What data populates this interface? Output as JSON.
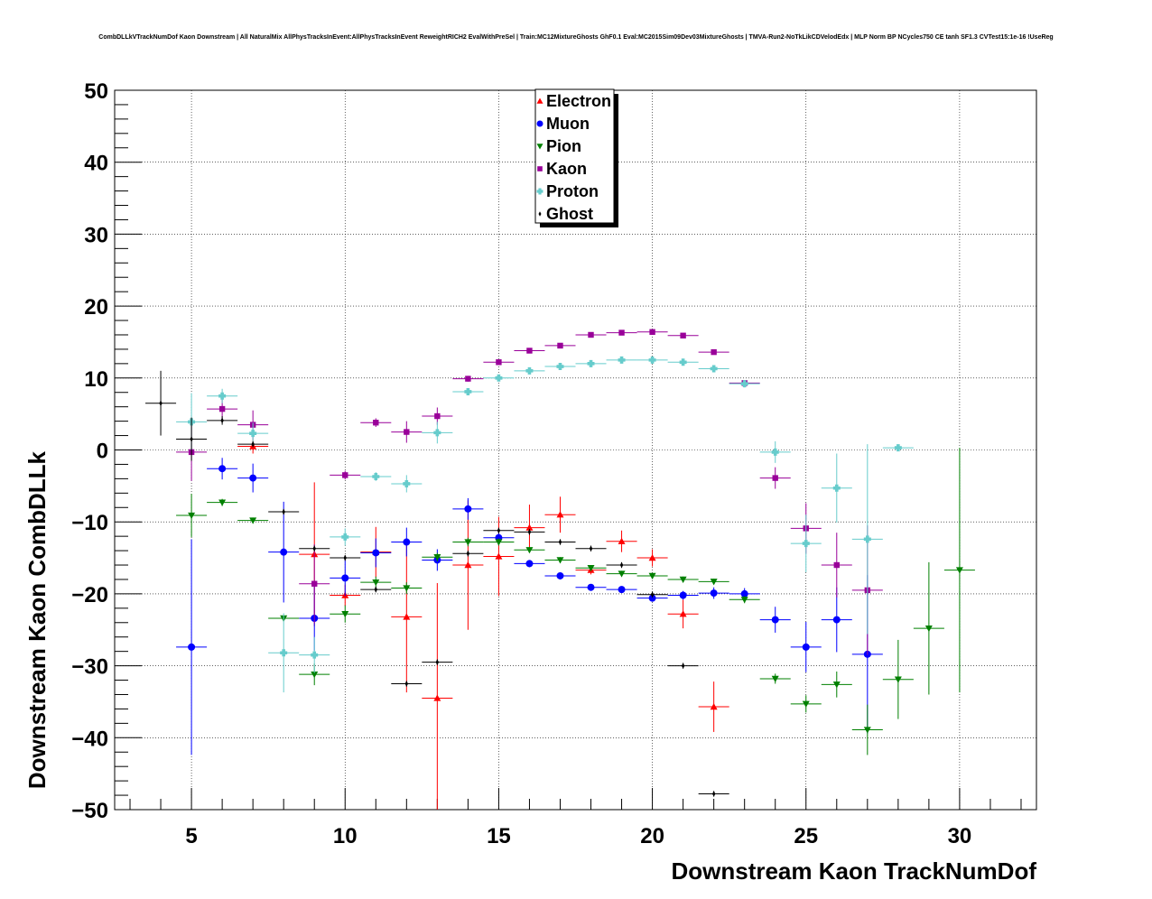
{
  "chart_data": {
    "type": "scatter",
    "title": "CombDLLkVTrackNumDof Kaon Downstream | All NaturalMix AllPhysTracksInEvent:AllPhysTracksInEvent ReweightRICH2 EvalWithPreSel | Train:MC12MixtureGhosts GhF0.1 Eval:MC2015Sim09Dev03MixtureGhosts | TMVA-Run2-NoTkLikCDVelodEdx | MLP Norm BP NCycles750 CE tanh SF1.3 CVTest15:1e-16 !UseReg",
    "xlabel": "Downstream Kaon TrackNumDof",
    "ylabel": "Downstream Kaon CombDLLk",
    "xlim": [
      2.5,
      32.5
    ],
    "ylim": [
      -50,
      50
    ],
    "x_ticks": [
      5,
      10,
      15,
      20,
      25,
      30
    ],
    "y_ticks": [
      -50,
      -40,
      -30,
      -20,
      -10,
      0,
      10,
      20,
      30,
      40,
      50
    ],
    "x_tick_labels": [
      "5",
      "10",
      "15",
      "20",
      "25",
      "30"
    ],
    "y_tick_labels": [
      "−50",
      "−40",
      "−30",
      "−20",
      "−10",
      "0",
      "10",
      "20",
      "30",
      "40",
      "50"
    ],
    "grid": true,
    "legend_position": "top-center",
    "series": [
      {
        "name": "Electron",
        "color": "#ff0000",
        "marker": "triangle-up",
        "points": [
          {
            "x": 7,
            "y": 0.5,
            "err": 1.0
          },
          {
            "x": 9,
            "y": -14.5,
            "err": 10.0
          },
          {
            "x": 10,
            "y": -20.2,
            "err": 1.5
          },
          {
            "x": 11,
            "y": -14.2,
            "err": 3.5
          },
          {
            "x": 12,
            "y": -23.2,
            "err": 10.5
          },
          {
            "x": 13,
            "y": -34.5,
            "err": 16.0
          },
          {
            "x": 14,
            "y": -16.0,
            "err": 9.0
          },
          {
            "x": 15,
            "y": -14.8,
            "err": 5.5
          },
          {
            "x": 16,
            "y": -10.8,
            "err": 3.2
          },
          {
            "x": 17,
            "y": -9.0,
            "err": 2.5
          },
          {
            "x": 18,
            "y": -16.7,
            "err": 0.6
          },
          {
            "x": 19,
            "y": -12.7,
            "err": 1.5
          },
          {
            "x": 20,
            "y": -15.0,
            "err": 1.2
          },
          {
            "x": 21,
            "y": -22.8,
            "err": 2.0
          },
          {
            "x": 22,
            "y": -35.7,
            "err": 3.5
          }
        ]
      },
      {
        "name": "Muon",
        "color": "#0000ff",
        "marker": "circle",
        "points": [
          {
            "x": 5,
            "y": -27.4,
            "err": 15.0
          },
          {
            "x": 6,
            "y": -2.6,
            "err": 1.5
          },
          {
            "x": 7,
            "y": -3.9,
            "err": 2.0
          },
          {
            "x": 8,
            "y": -14.2,
            "err": 7.0
          },
          {
            "x": 9,
            "y": -23.4,
            "err": 4.5
          },
          {
            "x": 10,
            "y": -17.8,
            "err": 2.5
          },
          {
            "x": 11,
            "y": -14.3,
            "err": 2.0
          },
          {
            "x": 12,
            "y": -12.8,
            "err": 2.0
          },
          {
            "x": 13,
            "y": -15.3,
            "err": 1.5
          },
          {
            "x": 14,
            "y": -8.2,
            "err": 1.5
          },
          {
            "x": 15,
            "y": -12.2,
            "err": 1.0
          },
          {
            "x": 16,
            "y": -15.8,
            "err": 0.5
          },
          {
            "x": 17,
            "y": -17.5,
            "err": 0.5
          },
          {
            "x": 18,
            "y": -19.1,
            "err": 0.4
          },
          {
            "x": 19,
            "y": -19.4,
            "err": 0.4
          },
          {
            "x": 20,
            "y": -20.6,
            "err": 0.5
          },
          {
            "x": 21,
            "y": -20.2,
            "err": 0.6
          },
          {
            "x": 22,
            "y": -19.9,
            "err": 0.8
          },
          {
            "x": 23,
            "y": -20.0,
            "err": 0.8
          },
          {
            "x": 24,
            "y": -23.6,
            "err": 1.8
          },
          {
            "x": 25,
            "y": -27.4,
            "err": 3.5
          },
          {
            "x": 26,
            "y": -23.6,
            "err": 4.5
          },
          {
            "x": 27,
            "y": -28.4,
            "err": 11.0
          }
        ]
      },
      {
        "name": "Pion",
        "color": "#008000",
        "marker": "triangle-down",
        "points": [
          {
            "x": 5,
            "y": -9.1,
            "err": 3.0
          },
          {
            "x": 6,
            "y": -7.3,
            "err": 0.5
          },
          {
            "x": 7,
            "y": -9.8,
            "err": 0.4
          },
          {
            "x": 8,
            "y": -23.4,
            "err": 0.4
          },
          {
            "x": 9,
            "y": -31.2,
            "err": 1.5
          },
          {
            "x": 10,
            "y": -22.8,
            "err": 1.2
          },
          {
            "x": 11,
            "y": -18.4,
            "err": 0.8
          },
          {
            "x": 12,
            "y": -19.2,
            "err": 0.8
          },
          {
            "x": 13,
            "y": -14.9,
            "err": 0.6
          },
          {
            "x": 14,
            "y": -12.8,
            "err": 0.6
          },
          {
            "x": 15,
            "y": -12.8,
            "err": 0.5
          },
          {
            "x": 16,
            "y": -13.9,
            "err": 0.4
          },
          {
            "x": 17,
            "y": -15.3,
            "err": 0.4
          },
          {
            "x": 18,
            "y": -16.4,
            "err": 0.4
          },
          {
            "x": 19,
            "y": -17.2,
            "err": 0.4
          },
          {
            "x": 20,
            "y": -17.5,
            "err": 0.4
          },
          {
            "x": 21,
            "y": -18.0,
            "err": 0.4
          },
          {
            "x": 22,
            "y": -18.3,
            "err": 0.4
          },
          {
            "x": 23,
            "y": -20.8,
            "err": 0.5
          },
          {
            "x": 24,
            "y": -31.8,
            "err": 0.7
          },
          {
            "x": 25,
            "y": -35.3,
            "err": 1.2
          },
          {
            "x": 26,
            "y": -32.6,
            "err": 1.8
          },
          {
            "x": 27,
            "y": -38.9,
            "err": 3.5
          },
          {
            "x": 28,
            "y": -31.9,
            "err": 5.5
          },
          {
            "x": 29,
            "y": -24.8,
            "err": 9.2
          },
          {
            "x": 30,
            "y": -16.7,
            "err": 17.0
          }
        ]
      },
      {
        "name": "Kaon",
        "color": "#990099",
        "marker": "square",
        "points": [
          {
            "x": 5,
            "y": -0.3,
            "err": 4.0
          },
          {
            "x": 6,
            "y": 5.7,
            "err": 1.5
          },
          {
            "x": 7,
            "y": 3.5,
            "err": 2.0
          },
          {
            "x": 9,
            "y": -18.6,
            "err": 5.5
          },
          {
            "x": 10,
            "y": -3.5,
            "err": 0.6
          },
          {
            "x": 11,
            "y": 3.8,
            "err": 0.6
          },
          {
            "x": 12,
            "y": 2.5,
            "err": 1.5
          },
          {
            "x": 13,
            "y": 4.7,
            "err": 1.2
          },
          {
            "x": 14,
            "y": 9.9,
            "err": 0.4
          },
          {
            "x": 15,
            "y": 12.2,
            "err": 0.3
          },
          {
            "x": 16,
            "y": 13.8,
            "err": 0.3
          },
          {
            "x": 17,
            "y": 14.5,
            "err": 0.3
          },
          {
            "x": 18,
            "y": 16.0,
            "err": 0.3
          },
          {
            "x": 19,
            "y": 16.3,
            "err": 0.3
          },
          {
            "x": 20,
            "y": 16.4,
            "err": 0.3
          },
          {
            "x": 21,
            "y": 15.9,
            "err": 0.3
          },
          {
            "x": 22,
            "y": 13.6,
            "err": 0.3
          },
          {
            "x": 23,
            "y": 9.3,
            "err": 0.4
          },
          {
            "x": 24,
            "y": -3.9,
            "err": 1.5
          },
          {
            "x": 25,
            "y": -10.9,
            "err": 3.5
          },
          {
            "x": 26,
            "y": -16.0,
            "err": 4.5
          },
          {
            "x": 27,
            "y": -19.5,
            "err": 9.0
          }
        ]
      },
      {
        "name": "Proton",
        "color": "#66cccc",
        "marker": "cross",
        "points": [
          {
            "x": 5,
            "y": 3.9,
            "err": 4.0
          },
          {
            "x": 6,
            "y": 7.5,
            "err": 1.0
          },
          {
            "x": 7,
            "y": 2.3,
            "err": 1.5
          },
          {
            "x": 8,
            "y": -28.2,
            "err": 5.5
          },
          {
            "x": 9,
            "y": -28.5,
            "err": 2.5
          },
          {
            "x": 10,
            "y": -12.1,
            "err": 1.2
          },
          {
            "x": 11,
            "y": -3.7,
            "err": 0.6
          },
          {
            "x": 12,
            "y": -4.7,
            "err": 1.2
          },
          {
            "x": 13,
            "y": 2.4,
            "err": 1.5
          },
          {
            "x": 14,
            "y": 8.1,
            "err": 0.5
          },
          {
            "x": 15,
            "y": 10.0,
            "err": 0.4
          },
          {
            "x": 16,
            "y": 11.0,
            "err": 0.3
          },
          {
            "x": 17,
            "y": 11.6,
            "err": 0.3
          },
          {
            "x": 18,
            "y": 12.0,
            "err": 0.3
          },
          {
            "x": 19,
            "y": 12.5,
            "err": 0.3
          },
          {
            "x": 20,
            "y": 12.5,
            "err": 0.3
          },
          {
            "x": 21,
            "y": 12.2,
            "err": 0.3
          },
          {
            "x": 22,
            "y": 11.3,
            "err": 0.4
          },
          {
            "x": 23,
            "y": 9.2,
            "err": 0.5
          },
          {
            "x": 24,
            "y": -0.3,
            "err": 1.5
          },
          {
            "x": 25,
            "y": -13.0,
            "err": 4.0
          },
          {
            "x": 26,
            "y": -5.3,
            "err": 4.8
          },
          {
            "x": 27,
            "y": -12.4,
            "err": 13.2
          },
          {
            "x": 28,
            "y": 0.3,
            "err": 0.3
          }
        ]
      },
      {
        "name": "Ghost",
        "color": "#000000",
        "marker": "diamond",
        "points": [
          {
            "x": 4,
            "y": 6.5,
            "err": 4.5
          },
          {
            "x": 5,
            "y": 1.5,
            "err": 3.0
          },
          {
            "x": 6,
            "y": 4.1,
            "err": 0.6
          },
          {
            "x": 7,
            "y": 0.8,
            "err": 0.4
          },
          {
            "x": 8,
            "y": -8.6,
            "err": 0.4
          },
          {
            "x": 9,
            "y": -13.7,
            "err": 0.4
          },
          {
            "x": 10,
            "y": -15.0,
            "err": 0.4
          },
          {
            "x": 11,
            "y": -19.4,
            "err": 0.4
          },
          {
            "x": 12,
            "y": -32.5,
            "err": 0.4
          },
          {
            "x": 13,
            "y": -29.5,
            "err": 0.4
          },
          {
            "x": 14,
            "y": -14.4,
            "err": 0.4
          },
          {
            "x": 15,
            "y": -11.2,
            "err": 0.4
          },
          {
            "x": 16,
            "y": -11.4,
            "err": 0.4
          },
          {
            "x": 17,
            "y": -12.8,
            "err": 0.4
          },
          {
            "x": 18,
            "y": -13.7,
            "err": 0.4
          },
          {
            "x": 19,
            "y": -16.0,
            "err": 0.4
          },
          {
            "x": 20,
            "y": -20.1,
            "err": 0.4
          },
          {
            "x": 21,
            "y": -30.0,
            "err": 0.4
          },
          {
            "x": 22,
            "y": -47.8,
            "err": 0.4
          }
        ]
      }
    ]
  }
}
